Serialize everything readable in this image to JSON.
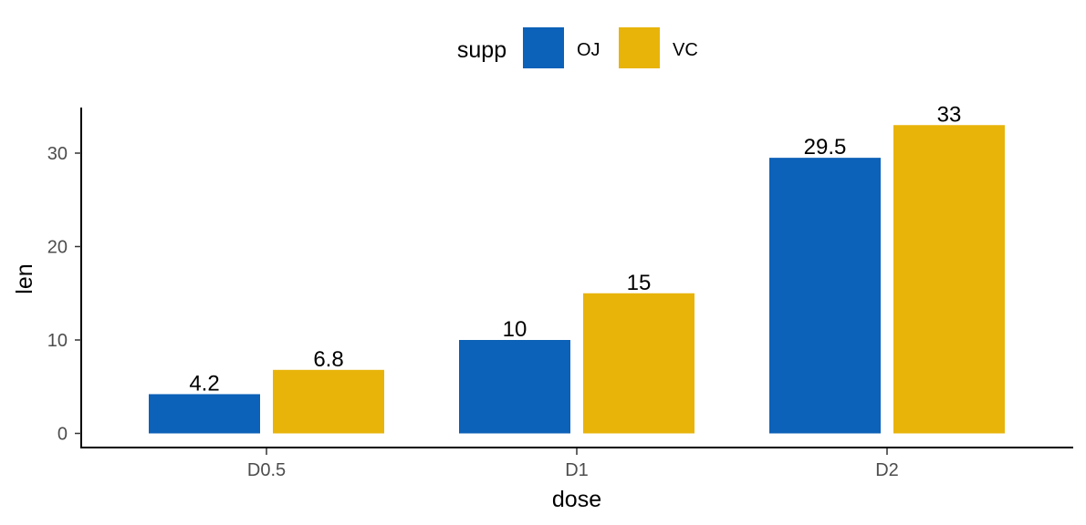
{
  "chart_data": {
    "type": "bar",
    "xlabel": "dose",
    "ylabel": "len",
    "categories": [
      "D0.5",
      "D1",
      "D2"
    ],
    "series": [
      {
        "name": "OJ",
        "color": "#0c61b8",
        "values": [
          4.2,
          10,
          29.5
        ]
      },
      {
        "name": "VC",
        "color": "#e8b40a",
        "values": [
          6.8,
          15,
          33
        ]
      }
    ],
    "ylim": [
      0,
      34.5
    ],
    "yticks": [
      0,
      10,
      20,
      30
    ],
    "grid": false,
    "legend": {
      "title": "supp",
      "position": "top"
    }
  }
}
